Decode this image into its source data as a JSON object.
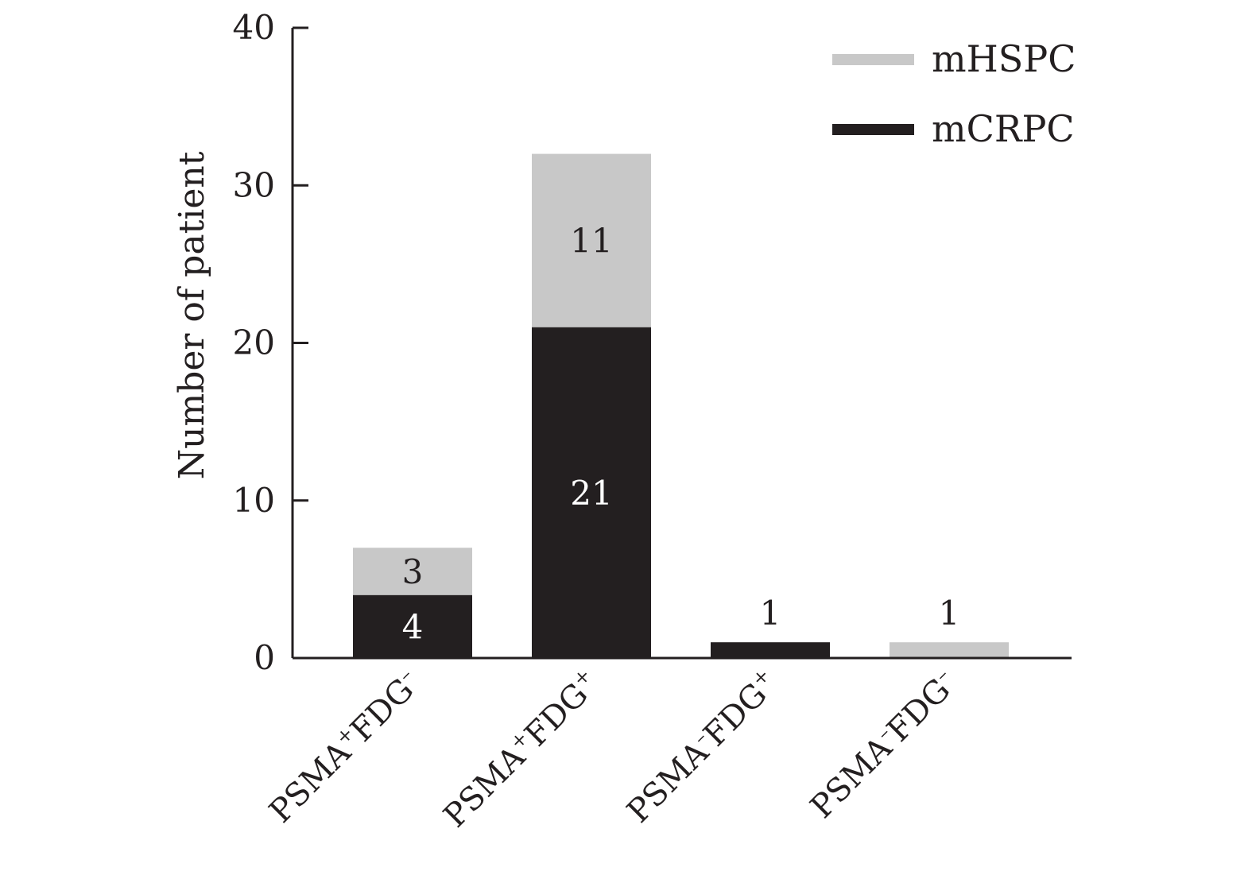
{
  "chart_data": {
    "type": "bar",
    "stacked": true,
    "ylabel": "Number of patient",
    "xlabel": "",
    "ylim": [
      0,
      40
    ],
    "yticks": [
      0,
      10,
      20,
      30,
      40
    ],
    "categories": [
      {
        "base": "PSMA",
        "s1": "+",
        "mid": "FDG",
        "s2": "–"
      },
      {
        "base": "PSMA",
        "s1": "+",
        "mid": "FDG",
        "s2": "+"
      },
      {
        "base": "PSMA",
        "s1": "–",
        "mid": "FDG",
        "s2": "+"
      },
      {
        "base": "PSMA",
        "s1": "–",
        "mid": "FDG",
        "s2": "–"
      }
    ],
    "series": [
      {
        "name": "mCRPC",
        "color": "#231f20",
        "label_color": "#ffffff",
        "values": [
          4,
          21,
          1,
          0
        ]
      },
      {
        "name": "mHSPC",
        "color": "#c8c8c8",
        "label_color": "#231f20",
        "values": [
          3,
          11,
          0,
          1
        ]
      }
    ],
    "legend": {
      "position": "top-right",
      "order": [
        "mHSPC",
        "mCRPC"
      ]
    }
  }
}
